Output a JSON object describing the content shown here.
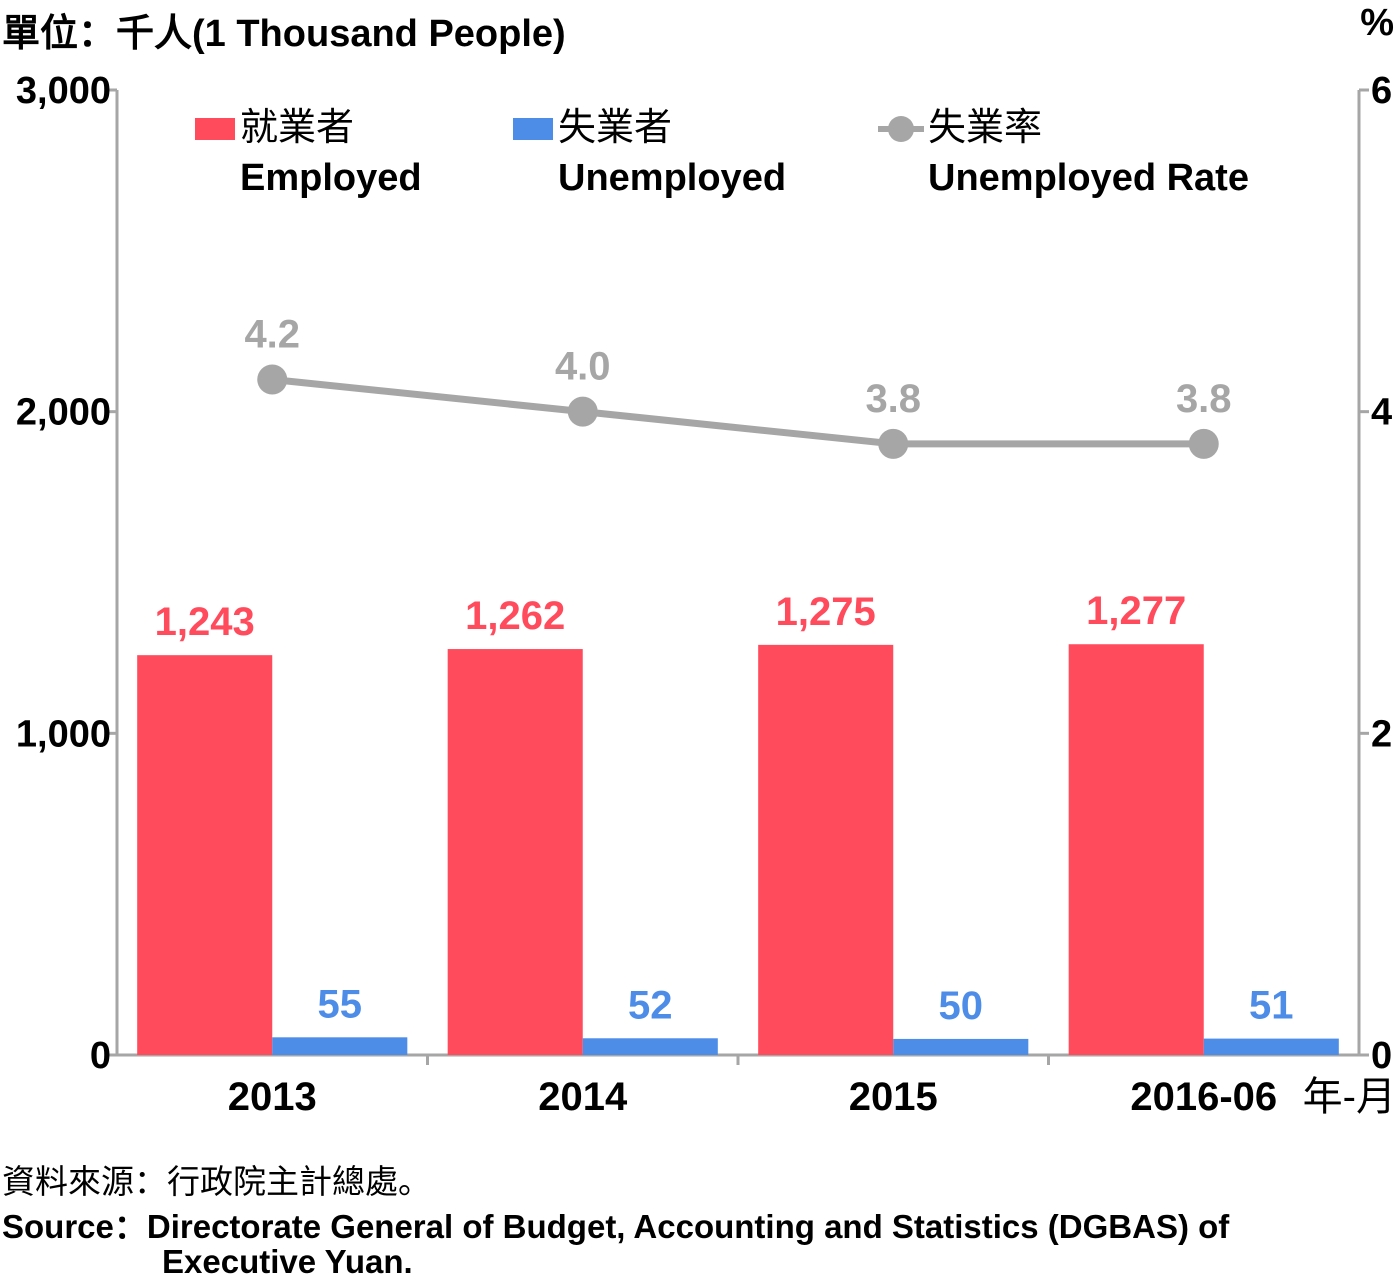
{
  "left_axis_unit": "單位：千人(1 Thousand People)",
  "right_axis_unit": "%",
  "x_axis_unit": "年-月",
  "source_zh": "資料來源：行政院主計總處。",
  "source_en_line1": "Source：Directorate General of Budget, Accounting and Statistics (DGBAS) of",
  "source_en_line2": "Executive Yuan.",
  "colors": {
    "employed": "#ff4b5c",
    "unemployed": "#4d8de8",
    "rate": "#a6a6a6",
    "axis": "#a6a6a6"
  },
  "chart_data": {
    "type": "bar",
    "categories": [
      "2013",
      "2014",
      "2015",
      "2016-06"
    ],
    "series": [
      {
        "name": "就業者 Employed",
        "name_zh": "就業者",
        "name_en": "Employed",
        "type": "bar",
        "axis": "left",
        "values": [
          1243,
          1262,
          1275,
          1277
        ],
        "labels": [
          "1,243",
          "1,262",
          "1,275",
          "1,277"
        ]
      },
      {
        "name": "失業者 Unemployed",
        "name_zh": "失業者",
        "name_en": "Unemployed",
        "type": "bar",
        "axis": "left",
        "values": [
          55,
          52,
          50,
          51
        ],
        "labels": [
          "55",
          "52",
          "50",
          "51"
        ]
      },
      {
        "name": "失業率 Unemployed Rate",
        "name_zh": "失業率",
        "name_en": "Unemployed Rate",
        "type": "line",
        "axis": "right",
        "values": [
          4.2,
          4.0,
          3.8,
          3.8
        ],
        "labels": [
          "4.2",
          "4.0",
          "3.8",
          "3.8"
        ]
      }
    ],
    "ylim_left": [
      0,
      3000
    ],
    "yticks_left": [
      "0",
      "1,000",
      "2,000",
      "3,000"
    ],
    "ylim_right": [
      0,
      6
    ],
    "yticks_right": [
      "0",
      "2",
      "4",
      "6"
    ],
    "grid": false,
    "legend": "top"
  }
}
